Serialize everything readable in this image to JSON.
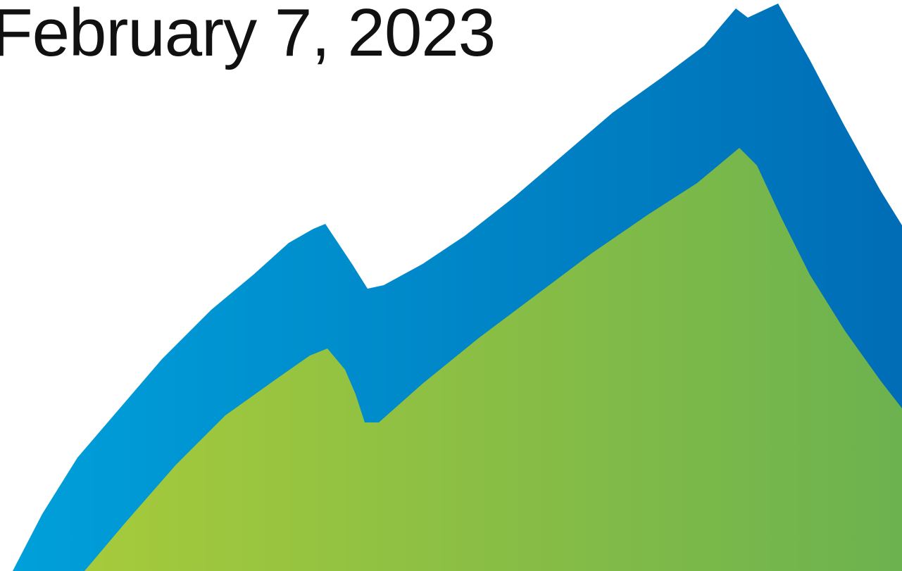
{
  "date": "February 7, 2023"
}
